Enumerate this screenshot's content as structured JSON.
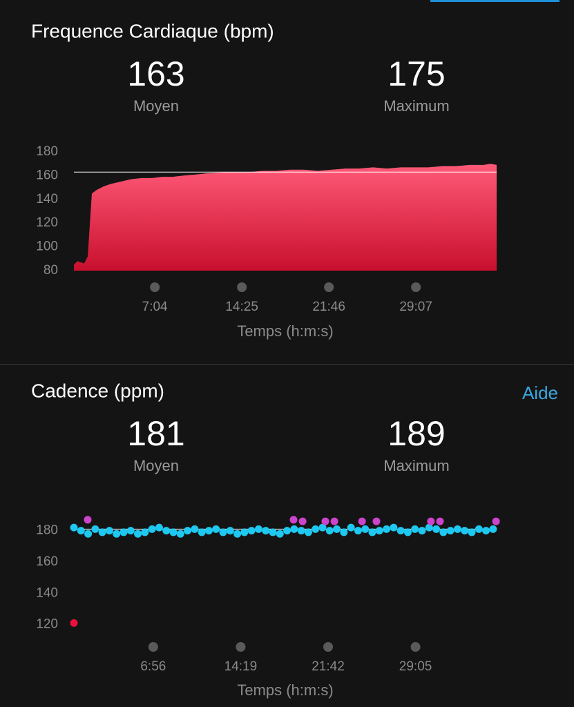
{
  "chart_data": [
    {
      "type": "area",
      "title": "Frequence Cardiaque (bpm)",
      "stats": [
        {
          "value": 163,
          "label": "Moyen"
        },
        {
          "value": 175,
          "label": "Maximum"
        }
      ],
      "x_label": "Temps (h:m:s)",
      "color": "#ff5a78",
      "x": [
        14,
        32,
        49,
        66,
        84,
        105,
        130,
        165,
        200,
        252,
        305,
        357,
        410,
        462,
        515,
        567,
        637,
        690,
        795,
        900,
        970,
        1040,
        1110,
        1180,
        1250,
        1320,
        1390,
        1460,
        1530,
        1600,
        1670,
        1740,
        1810,
        1880,
        1950,
        2020,
        2090,
        2125,
        2156
      ],
      "values": [
        85,
        88,
        87,
        86,
        92,
        145,
        148,
        151,
        153,
        155,
        157,
        158,
        158,
        159,
        159,
        160,
        161,
        162,
        163,
        163,
        164,
        164,
        165,
        165,
        164,
        165,
        166,
        166,
        167,
        166,
        167,
        167,
        167,
        168,
        168,
        169,
        169,
        170,
        169
      ],
      "xlim": [
        0,
        2156
      ],
      "xticks": [
        {
          "value": 424,
          "label": "7:04"
        },
        {
          "value": 865,
          "label": "14:25"
        },
        {
          "value": 1306,
          "label": "21:46"
        },
        {
          "value": 1747,
          "label": "29:07"
        }
      ],
      "ylim": [
        80,
        180
      ],
      "yticks": [
        80,
        100,
        120,
        140,
        160,
        180
      ]
    },
    {
      "type": "scatter",
      "title": "Cadence (ppm)",
      "link": "Aide",
      "stats": [
        {
          "value": 181,
          "label": "Moyen"
        },
        {
          "value": 189,
          "label": "Maximum"
        }
      ],
      "x_label": "Temps (h:m:s)",
      "series": [
        {
          "color": "#1ec8f0",
          "x": [
            14,
            50,
            86,
            122,
            158,
            194,
            230,
            266,
            302,
            338,
            374,
            410,
            446,
            482,
            518,
            554,
            590,
            626,
            662,
            698,
            734,
            770,
            806,
            842,
            878,
            914,
            950,
            986,
            1022,
            1058,
            1094,
            1130,
            1166,
            1202,
            1238,
            1274,
            1310,
            1346,
            1382,
            1418,
            1454,
            1490,
            1526,
            1562,
            1598,
            1634,
            1670,
            1706,
            1742,
            1778,
            1814,
            1850,
            1886,
            1922,
            1958,
            1994,
            2030,
            2066,
            2102,
            2138
          ],
          "values": [
            182,
            180,
            178,
            181,
            179,
            180,
            178,
            179,
            180,
            178,
            179,
            181,
            182,
            180,
            179,
            178,
            180,
            181,
            179,
            180,
            181,
            179,
            180,
            178,
            179,
            180,
            181,
            180,
            179,
            178,
            180,
            181,
            180,
            179,
            181,
            182,
            180,
            181,
            179,
            182,
            180,
            181,
            179,
            180,
            181,
            182,
            180,
            179,
            181,
            180,
            182,
            181,
            179,
            180,
            181,
            180,
            179,
            181,
            180,
            181
          ]
        },
        {
          "color": "#cc44cc",
          "x": [
            84,
            1127,
            1173,
            1288,
            1334,
            1474,
            1547,
            1823,
            1869,
            2153
          ],
          "values": [
            187,
            187,
            186,
            186,
            186,
            186,
            186,
            186,
            186,
            186
          ]
        },
        {
          "color": "#e8103c",
          "x": [
            14
          ],
          "values": [
            121
          ]
        }
      ],
      "xlim": [
        0,
        2156
      ],
      "xticks": [
        {
          "value": 416,
          "label": "6:56"
        },
        {
          "value": 859,
          "label": "14:19"
        },
        {
          "value": 1302,
          "label": "21:42"
        },
        {
          "value": 1745,
          "label": "29:05"
        }
      ],
      "ylim": [
        115,
        190
      ],
      "yticks": [
        120,
        140,
        160,
        180
      ]
    }
  ]
}
